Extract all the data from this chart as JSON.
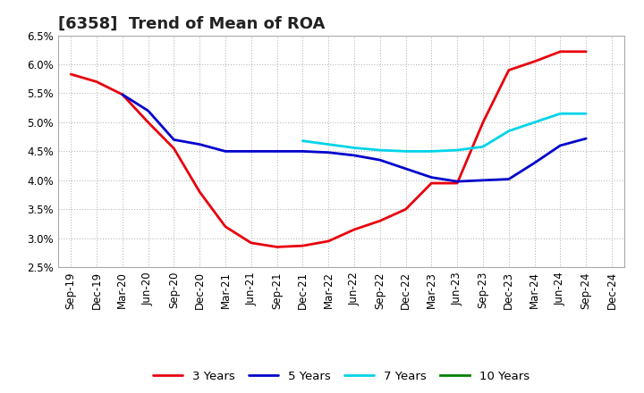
{
  "title": "[6358]  Trend of Mean of ROA",
  "x_labels": [
    "Sep-19",
    "Dec-19",
    "Mar-20",
    "Jun-20",
    "Sep-20",
    "Dec-20",
    "Mar-21",
    "Jun-21",
    "Sep-21",
    "Dec-21",
    "Mar-22",
    "Jun-22",
    "Sep-22",
    "Dec-22",
    "Mar-23",
    "Jun-23",
    "Sep-23",
    "Dec-23",
    "Mar-24",
    "Jun-24",
    "Sep-24",
    "Dec-24"
  ],
  "y_min": 0.025,
  "y_max": 0.065,
  "y_ticks": [
    0.025,
    0.03,
    0.035,
    0.04,
    0.045,
    0.05,
    0.055,
    0.06,
    0.065
  ],
  "series": {
    "3 Years": {
      "color": "#e8000d",
      "linewidth": 2.0,
      "data_x": [
        0,
        1,
        2,
        3,
        4,
        5,
        6,
        7,
        8,
        9,
        10,
        11,
        12,
        13,
        14,
        15,
        16,
        17,
        18,
        19,
        20
      ],
      "data_y": [
        0.0583,
        0.057,
        0.0548,
        0.05,
        0.0455,
        0.038,
        0.032,
        0.0292,
        0.0285,
        0.0287,
        0.0295,
        0.0315,
        0.033,
        0.035,
        0.0395,
        0.0395,
        0.05,
        0.059,
        0.0605,
        0.0622,
        0.0622
      ]
    },
    "5 Years": {
      "color": "#0000cd",
      "linewidth": 2.0,
      "data_x": [
        2,
        3,
        4,
        5,
        6,
        7,
        8,
        9,
        10,
        11,
        12,
        13,
        14,
        15,
        16,
        17,
        18,
        19,
        20
      ],
      "data_y": [
        0.0548,
        0.052,
        0.047,
        0.0462,
        0.045,
        0.045,
        0.045,
        0.045,
        0.0448,
        0.0443,
        0.0435,
        0.042,
        0.0405,
        0.0398,
        0.04,
        0.0402,
        0.043,
        0.046,
        0.0472
      ]
    },
    "7 Years": {
      "color": "#00d4e8",
      "linewidth": 2.0,
      "data_x": [
        9,
        10,
        11,
        12,
        13,
        14,
        15,
        16,
        17,
        18,
        19,
        20
      ],
      "data_y": [
        0.0468,
        0.0462,
        0.0456,
        0.0452,
        0.045,
        0.045,
        0.0452,
        0.0458,
        0.0485,
        0.05,
        0.0515,
        0.0515
      ]
    },
    "10 Years": {
      "color": "#008000",
      "linewidth": 2.0,
      "data_x": [],
      "data_y": []
    }
  },
  "background_color": "#ffffff",
  "grid_color": "#aaaaaa",
  "title_fontsize": 13,
  "tick_fontsize": 8.5
}
